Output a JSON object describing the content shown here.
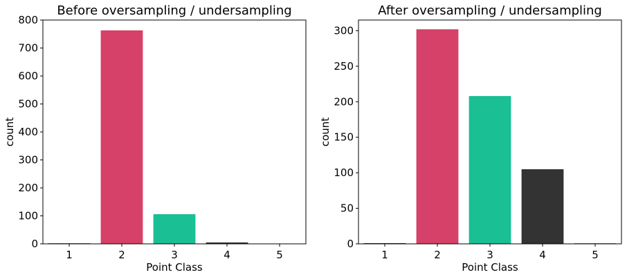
{
  "chart_data": [
    {
      "type": "bar",
      "title": "Before oversampling / undersampling",
      "xlabel": "Point Class",
      "ylabel": "count",
      "categories": [
        "1",
        "2",
        "3",
        "4",
        "5"
      ],
      "values": [
        2,
        763,
        106,
        5,
        1
      ],
      "colors": [
        "#2a2a9e",
        "#d64169",
        "#1abf94",
        "#333333",
        "#d99000"
      ],
      "ylim": [
        0,
        800
      ],
      "yticks": [
        0,
        100,
        200,
        300,
        400,
        500,
        600,
        700,
        800
      ],
      "grid": false,
      "legend": "none"
    },
    {
      "type": "bar",
      "title": "After oversampling / undersampling",
      "xlabel": "Point Class",
      "ylabel": "count",
      "categories": [
        "1",
        "2",
        "3",
        "4",
        "5"
      ],
      "values": [
        1,
        302,
        208,
        105,
        1
      ],
      "colors": [
        "#2a2a9e",
        "#d64169",
        "#1abf94",
        "#333333",
        "#d99000"
      ],
      "ylim": [
        0,
        315
      ],
      "yticks": [
        0,
        50,
        100,
        150,
        200,
        250,
        300
      ],
      "grid": false,
      "legend": "none"
    }
  ]
}
